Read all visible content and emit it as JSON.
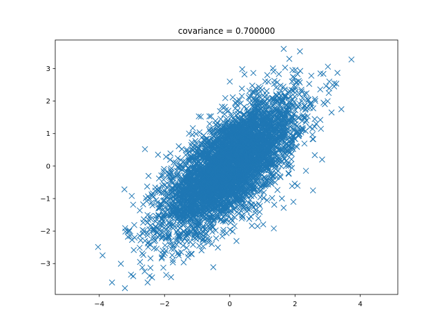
{
  "chart_data": {
    "type": "scatter",
    "title": "covariance = 0.700000",
    "xlabel": "",
    "ylabel": "",
    "xlim": [
      -5.35,
      5.15
    ],
    "ylim": [
      -3.95,
      3.88
    ],
    "xticks": [
      -4,
      -2,
      0,
      2,
      4
    ],
    "yticks": [
      -3,
      -2,
      -1,
      0,
      1,
      2,
      3
    ],
    "marker": "x",
    "color": "#1f77b4",
    "grid": false,
    "n_points": 5000,
    "covariance": 0.7,
    "outlier_points": [
      [
        -3.9,
        -2.75
      ],
      [
        -2.52,
        -3.58
      ],
      [
        -3.05,
        -2.15
      ],
      [
        2.15,
        3.53
      ],
      [
        3.73,
        3.28
      ],
      [
        2.83,
        0.2
      ],
      [
        3.42,
        1.75
      ],
      [
        3.3,
        2.87
      ],
      [
        3.12,
        1.65
      ],
      [
        2.55,
        -0.75
      ],
      [
        0.38,
        2.98
      ],
      [
        0.0,
        2.6
      ],
      [
        1.15,
        2.8
      ],
      [
        -1.8,
        -3.42
      ],
      [
        -1.95,
        -3.35
      ],
      [
        -0.95,
        1.53
      ],
      [
        2.78,
        2.85
      ],
      [
        3.2,
        2.45
      ],
      [
        1.35,
        -1.92
      ],
      [
        2.65,
        1.3
      ],
      [
        -2.75,
        -2.95
      ],
      [
        -2.6,
        0.52
      ],
      [
        -0.55,
        -2.4
      ],
      [
        0.45,
        2.82
      ],
      [
        3.05,
        2.6
      ],
      [
        -1.25,
        1.0
      ],
      [
        1.95,
        -1.1
      ],
      [
        2.5,
        2.78
      ],
      [
        -2.2,
        0.35
      ],
      [
        0.85,
        -1.85
      ]
    ]
  }
}
